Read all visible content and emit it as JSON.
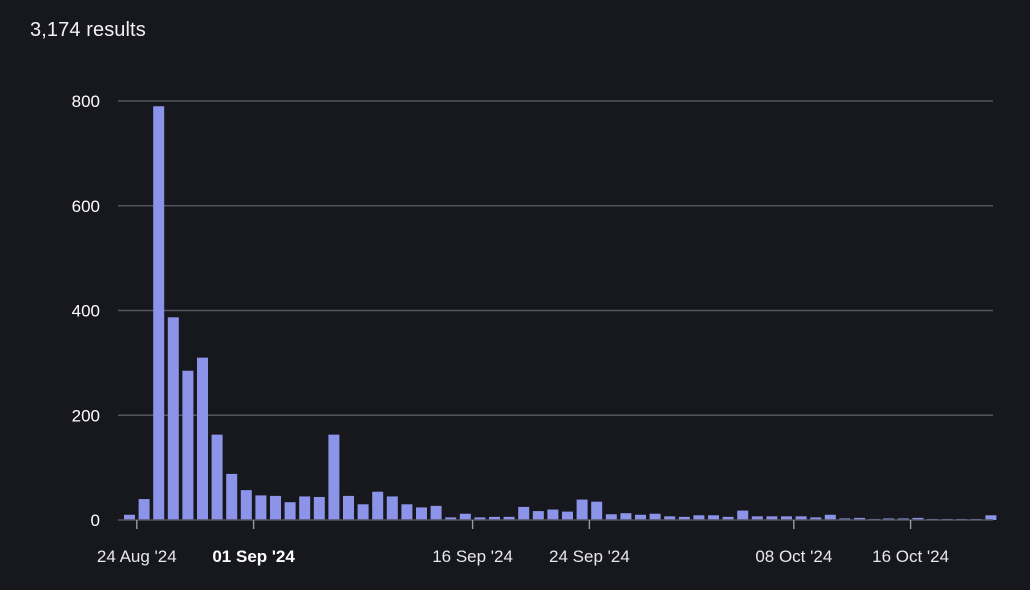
{
  "header": {
    "results_label": "3,174 results"
  },
  "colors": {
    "bar": "#8b94e8",
    "background": "#17171e",
    "grid": "#555560"
  },
  "chart_data": {
    "type": "bar",
    "title": "",
    "xlabel": "",
    "ylabel": "",
    "ylim": [
      0,
      800
    ],
    "yticks": [
      0,
      200,
      400,
      600,
      800
    ],
    "grid": true,
    "start_date": "2024-08-23",
    "x_ticks": [
      {
        "label": "24 Aug '24",
        "date": "2024-08-24",
        "bold": false
      },
      {
        "label": "01 Sep '24",
        "date": "2024-09-01",
        "bold": true
      },
      {
        "label": "16 Sep '24",
        "date": "2024-09-16",
        "bold": false
      },
      {
        "label": "24 Sep '24",
        "date": "2024-09-24",
        "bold": false
      },
      {
        "label": "08 Oct '24",
        "date": "2024-10-08",
        "bold": false
      },
      {
        "label": "16 Oct '24",
        "date": "2024-10-16",
        "bold": false
      }
    ],
    "values": [
      10,
      40,
      790,
      387,
      285,
      310,
      163,
      88,
      57,
      47,
      46,
      34,
      45,
      44,
      163,
      46,
      30,
      54,
      45,
      30,
      24,
      27,
      5,
      12,
      5,
      6,
      6,
      25,
      17,
      20,
      16,
      39,
      35,
      11,
      13,
      10,
      12,
      7,
      6,
      9,
      9,
      6,
      18,
      7,
      7,
      7,
      7,
      5,
      10,
      3,
      4,
      2,
      3,
      3,
      4,
      2,
      2,
      2,
      2,
      9
    ]
  }
}
